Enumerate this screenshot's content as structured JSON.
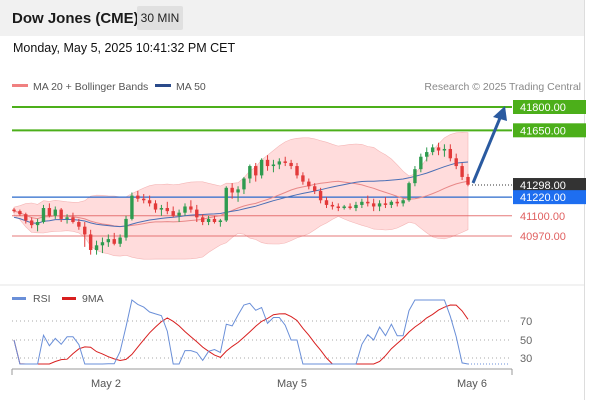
{
  "header": {
    "title": "Dow Jones (CME)",
    "timeframe": "30 MIN",
    "datetime": "Monday, May 5, 2025 10:41:32 PM CET"
  },
  "legend": {
    "bollinger_label": "MA 20 + Bollinger Bands",
    "ma50_label": "MA 50",
    "credit": "Research © 2025 Trading Central"
  },
  "colors": {
    "resistance": "#4caf1a",
    "support_line": "#2a6acb",
    "support_label": "#1e6ef0",
    "red_level": "#e06060",
    "price_label": "#333333",
    "arrow": "#2a5aa0",
    "bull": "#2e9b4f",
    "bear": "#e23a3a",
    "bands": "#ffd0d0",
    "ma20": "#e88888",
    "ma50": "#4a6fb5",
    "rsi": "#6a8fd8",
    "rsi_ma": "#d81f1f"
  },
  "levels": [
    {
      "value": 41800,
      "label": "41800.00",
      "kind": "resistance"
    },
    {
      "value": 41650,
      "label": "41650.00",
      "kind": "resistance"
    },
    {
      "value": 41298,
      "label": "41298.00",
      "kind": "current"
    },
    {
      "value": 41220,
      "label": "41220.00",
      "kind": "support_main"
    },
    {
      "value": 41100,
      "label": "41100.00",
      "kind": "support"
    },
    {
      "value": 40970,
      "label": "40970.00",
      "kind": "support"
    }
  ],
  "rsi_panel": {
    "rsi_label": "RSI",
    "ma_label": "9MA",
    "ticks": [
      "70",
      "50",
      "30"
    ]
  },
  "x_axis": {
    "ticks": [
      "May 2",
      "May 5",
      "May 6"
    ]
  },
  "chart_data": {
    "type": "candlestick",
    "title": "Dow Jones (CME)",
    "timeframe": "30 MIN",
    "x_ticks": [
      "May 2",
      "May 5",
      "May 6"
    ],
    "y_levels": [
      41800,
      41650,
      41298,
      41220,
      41100,
      40970
    ],
    "ohlc": [
      [
        41140,
        41150,
        41120,
        41130
      ],
      [
        41130,
        41140,
        41100,
        41110
      ],
      [
        41110,
        41120,
        41050,
        41070
      ],
      [
        41070,
        41090,
        41020,
        41040
      ],
      [
        41040,
        41080,
        41000,
        41060
      ],
      [
        41060,
        41170,
        41050,
        41150
      ],
      [
        41150,
        41180,
        41090,
        41100
      ],
      [
        41100,
        41160,
        41080,
        41140
      ],
      [
        41140,
        41150,
        41060,
        41080
      ],
      [
        41080,
        41110,
        41050,
        41090
      ],
      [
        41090,
        41120,
        41050,
        41060
      ],
      [
        41060,
        41080,
        41010,
        41030
      ],
      [
        41030,
        41060,
        40900,
        40980
      ],
      [
        40980,
        41010,
        40850,
        40880
      ],
      [
        40880,
        40940,
        40850,
        40910
      ],
      [
        40910,
        40960,
        40860,
        40930
      ],
      [
        40930,
        40980,
        40900,
        40950
      ],
      [
        40950,
        40990,
        40910,
        40920
      ],
      [
        40920,
        40980,
        40900,
        40960
      ],
      [
        40960,
        41100,
        40940,
        41080
      ],
      [
        41080,
        41250,
        41070,
        41230
      ],
      [
        41230,
        41260,
        41190,
        41210
      ],
      [
        41210,
        41240,
        41180,
        41200
      ],
      [
        41200,
        41230,
        41160,
        41180
      ],
      [
        41180,
        41200,
        41120,
        41140
      ],
      [
        41140,
        41170,
        41100,
        41150
      ],
      [
        41150,
        41190,
        41110,
        41130
      ],
      [
        41130,
        41160,
        41090,
        41100
      ],
      [
        41100,
        41140,
        41060,
        41120
      ],
      [
        41120,
        41180,
        41100,
        41160
      ],
      [
        41160,
        41200,
        41120,
        41140
      ],
      [
        41140,
        41170,
        41060,
        41090
      ],
      [
        41090,
        41110,
        41040,
        41060
      ],
      [
        41060,
        41100,
        41040,
        41080
      ],
      [
        41080,
        41100,
        41050,
        41060
      ],
      [
        41060,
        41080,
        41030,
        41070
      ],
      [
        41070,
        41290,
        41060,
        41280
      ],
      [
        41280,
        41310,
        41210,
        41250
      ],
      [
        41250,
        41290,
        41190,
        41270
      ],
      [
        41270,
        41350,
        41240,
        41340
      ],
      [
        41340,
        41430,
        41310,
        41420
      ],
      [
        41420,
        41440,
        41320,
        41360
      ],
      [
        41360,
        41470,
        41340,
        41460
      ],
      [
        41460,
        41490,
        41390,
        41420
      ],
      [
        41420,
        41460,
        41380,
        41430
      ],
      [
        41430,
        41470,
        41400,
        41450
      ],
      [
        41450,
        41480,
        41420,
        41440
      ],
      [
        41440,
        41460,
        41400,
        41420
      ],
      [
        41420,
        41440,
        41340,
        41360
      ],
      [
        41360,
        41380,
        41300,
        41320
      ],
      [
        41320,
        41340,
        41270,
        41290
      ],
      [
        41290,
        41310,
        41240,
        41260
      ],
      [
        41260,
        41280,
        41180,
        41200
      ],
      [
        41200,
        41220,
        41150,
        41170
      ],
      [
        41170,
        41190,
        41140,
        41160
      ],
      [
        41160,
        41180,
        41130,
        41150
      ],
      [
        41150,
        41170,
        41140,
        41160
      ],
      [
        41160,
        41180,
        41140,
        41150
      ],
      [
        41150,
        41190,
        41130,
        41170
      ],
      [
        41170,
        41210,
        41150,
        41190
      ],
      [
        41190,
        41230,
        41160,
        41180
      ],
      [
        41180,
        41210,
        41130,
        41160
      ],
      [
        41160,
        41200,
        41130,
        41180
      ],
      [
        41180,
        41220,
        41150,
        41170
      ],
      [
        41170,
        41200,
        41150,
        41190
      ],
      [
        41190,
        41210,
        41160,
        41180
      ],
      [
        41180,
        41210,
        41160,
        41200
      ],
      [
        41200,
        41320,
        41190,
        41310
      ],
      [
        41310,
        41420,
        41290,
        41400
      ],
      [
        41400,
        41500,
        41380,
        41480
      ],
      [
        41480,
        41540,
        41450,
        41510
      ],
      [
        41510,
        41560,
        41490,
        41540
      ],
      [
        41540,
        41570,
        41490,
        41520
      ],
      [
        41520,
        41560,
        41480,
        41530
      ],
      [
        41530,
        41560,
        41450,
        41470
      ],
      [
        41470,
        41500,
        41400,
        41420
      ],
      [
        41420,
        41440,
        41330,
        41350
      ],
      [
        41350,
        41370,
        41290,
        41300
      ]
    ]
  }
}
